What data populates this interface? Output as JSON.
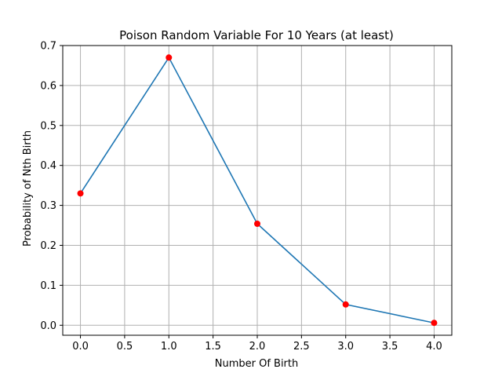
{
  "chart_data": {
    "type": "line",
    "title": "Poison Random Variable For 10 Years (at least)",
    "xlabel": "Number Of Birth",
    "ylabel": "Probability of Nth Birth",
    "xlim": [
      -0.2,
      4.2
    ],
    "ylim": [
      -0.025,
      0.7
    ],
    "x_ticks": [
      0.0,
      0.5,
      1.0,
      1.5,
      2.0,
      2.5,
      3.0,
      3.5,
      4.0
    ],
    "x_tick_labels": [
      "0.0",
      "0.5",
      "1.0",
      "1.5",
      "2.0",
      "2.5",
      "3.0",
      "3.5",
      "4.0"
    ],
    "y_ticks": [
      0.0,
      0.1,
      0.2,
      0.3,
      0.4,
      0.5,
      0.6,
      0.7
    ],
    "y_tick_labels": [
      "0.0",
      "0.1",
      "0.2",
      "0.3",
      "0.4",
      "0.5",
      "0.6",
      "0.7"
    ],
    "grid": true,
    "legend": "none",
    "series": [
      {
        "x": [
          0,
          1,
          2,
          3,
          4
        ],
        "y": [
          0.33,
          0.67,
          0.254,
          0.052,
          0.006
        ],
        "line_color": "#1f77b4",
        "marker_color": "#ff0000"
      }
    ]
  },
  "colors": {
    "background": "#ffffff",
    "grid": "#b0b0b0",
    "axes": "#000000"
  }
}
